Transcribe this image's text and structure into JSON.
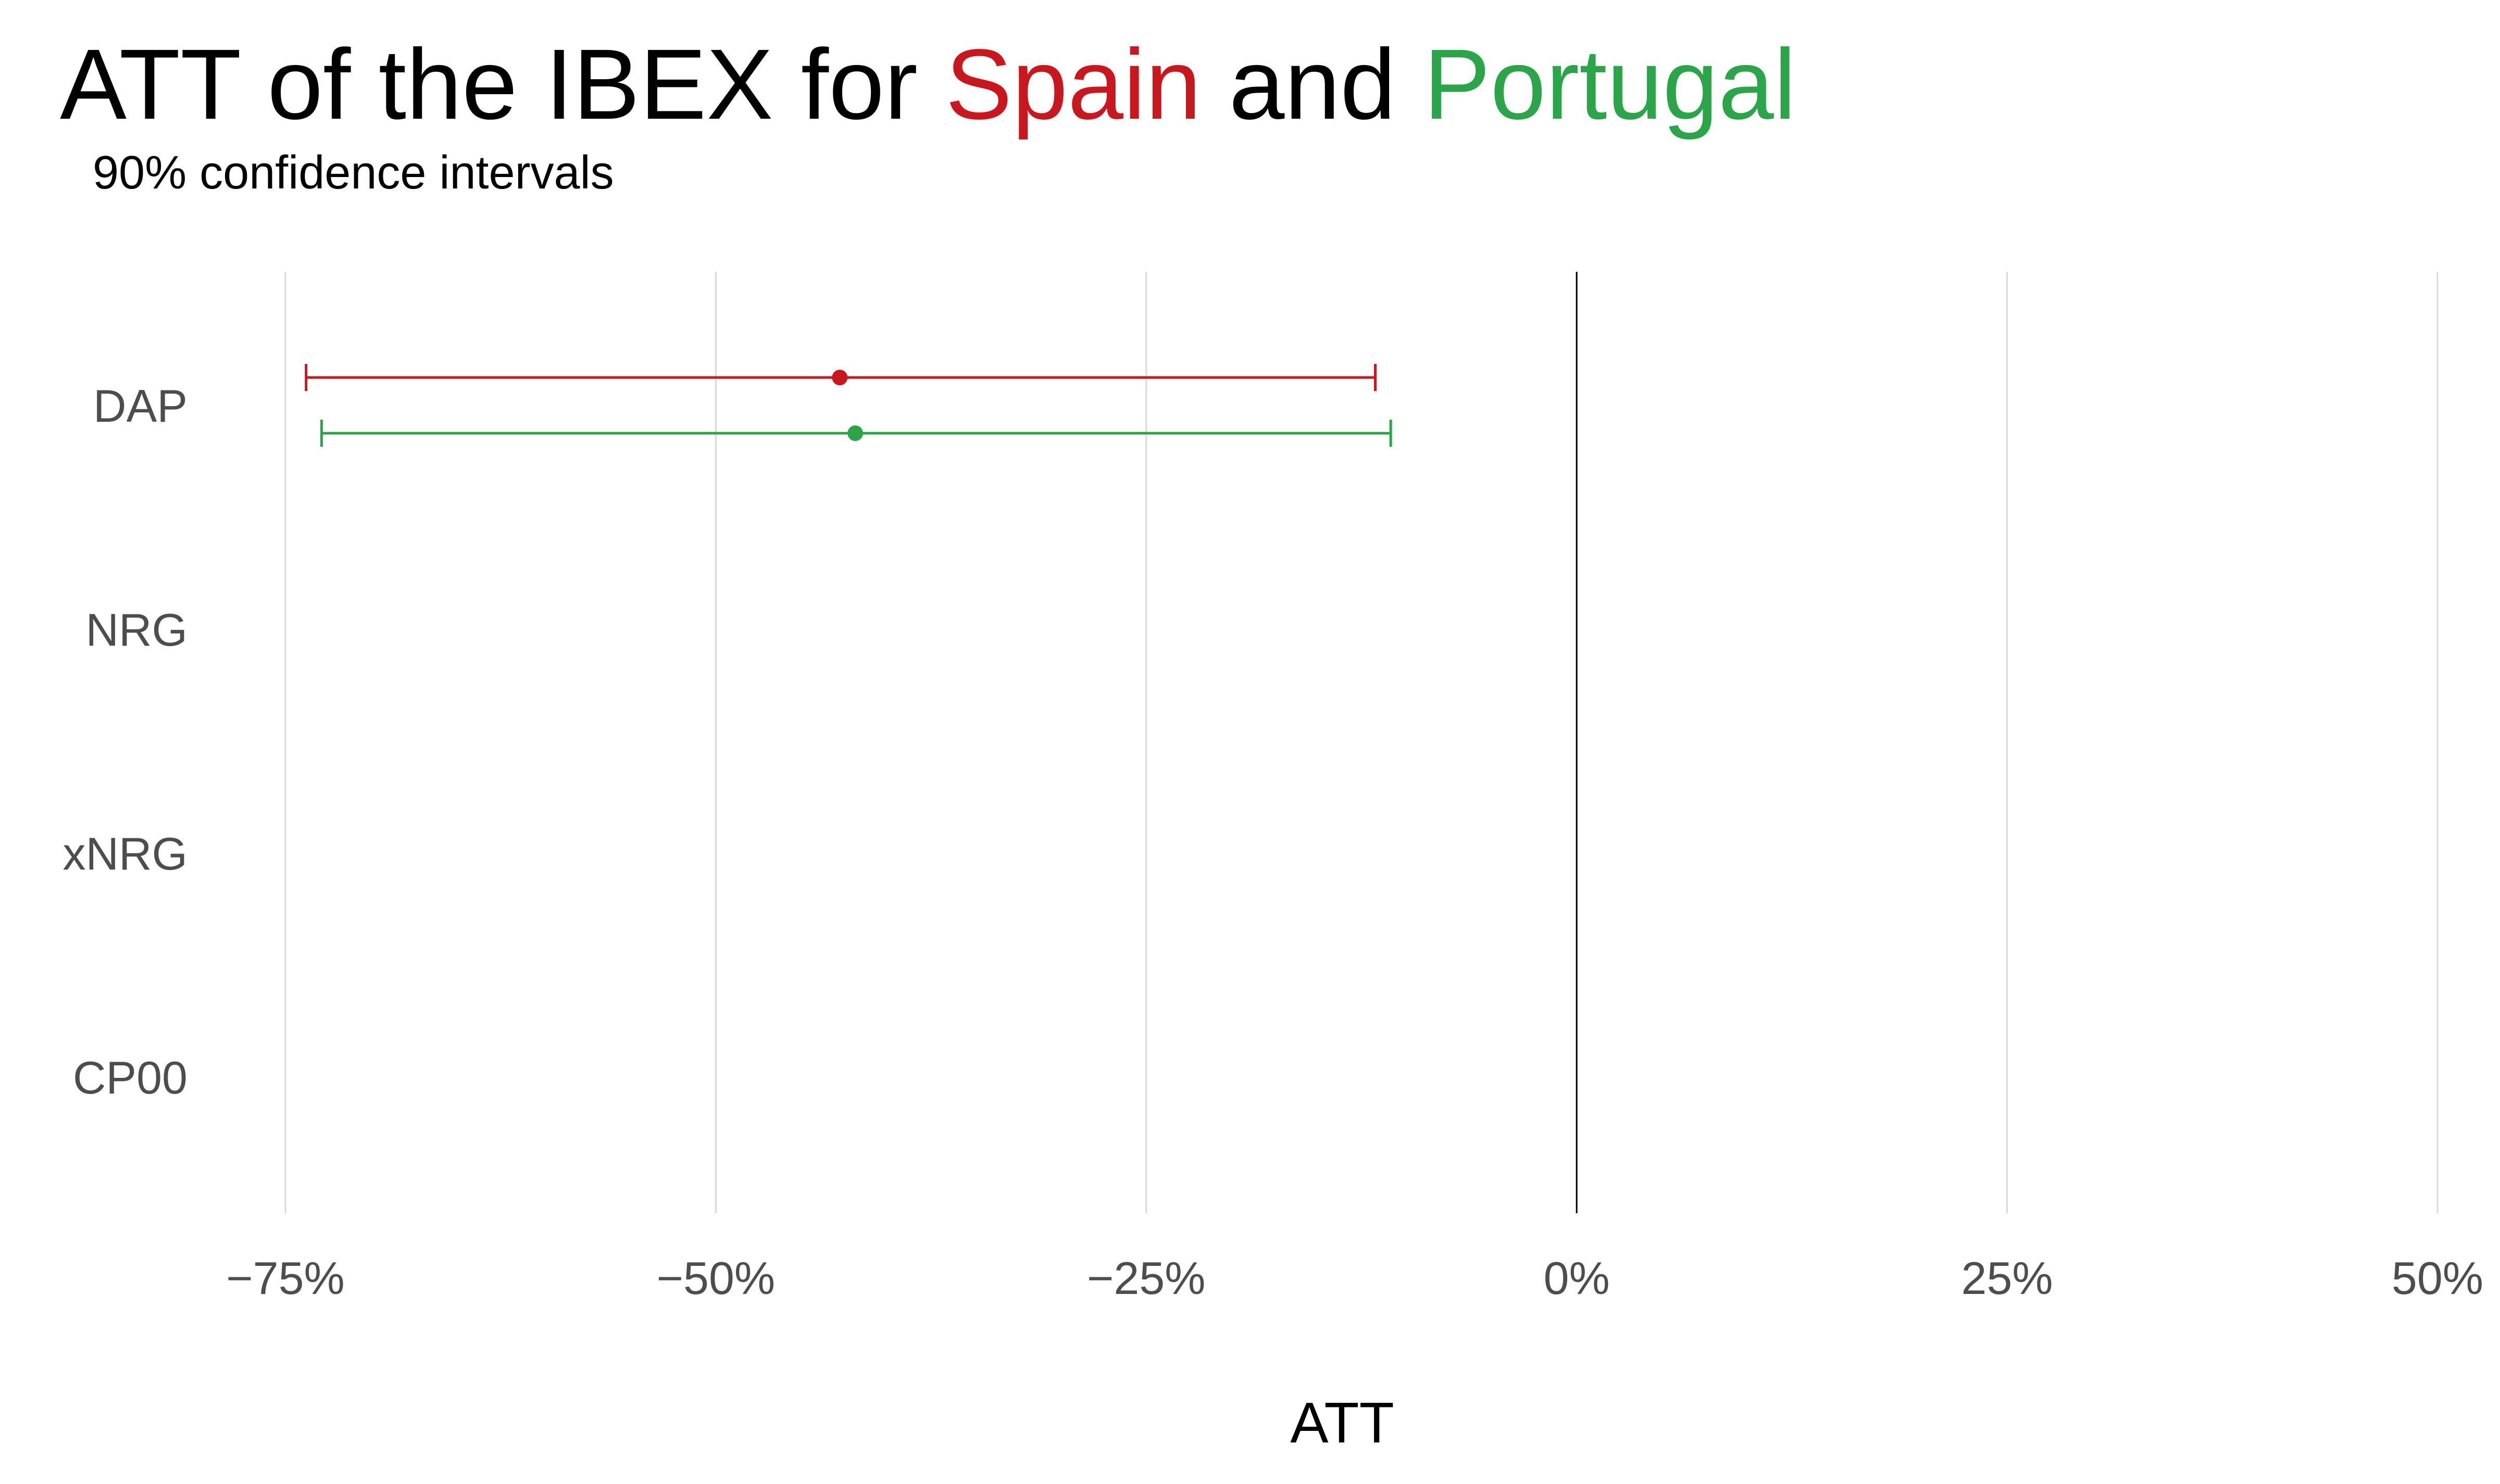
{
  "chart_data": {
    "type": "errorbar",
    "title_parts": [
      {
        "text": "ATT of the IBEX for ",
        "color": "#000000"
      },
      {
        "text": "Spain",
        "color": "#c8171e"
      },
      {
        "text": " and ",
        "color": "#000000"
      },
      {
        "text": "Portugal",
        "color": "#2ca54a"
      }
    ],
    "subtitle": "90% confidence intervals",
    "xlabel": "ATT",
    "ylabel": "",
    "xlim": [
      -75,
      50
    ],
    "xticks": [
      -75,
      -50,
      -25,
      0,
      25,
      50
    ],
    "xtick_labels": [
      "−75%",
      "−50%",
      "−25%",
      "0%",
      "25%",
      "50%"
    ],
    "categories": [
      "DAP",
      "NRG",
      "xNRG",
      "CP00"
    ],
    "reference_line": 0,
    "grid": "vertical",
    "series": [
      {
        "name": "Spain",
        "color": "#c8171e",
        "points": [
          {
            "category": "DAP",
            "estimate": -42.8,
            "lower": -73.8,
            "upper": -11.7
          }
        ]
      },
      {
        "name": "Portugal",
        "color": "#2ca54a",
        "points": [
          {
            "category": "DAP",
            "estimate": -41.9,
            "lower": -72.9,
            "upper": -10.8
          }
        ]
      }
    ]
  }
}
